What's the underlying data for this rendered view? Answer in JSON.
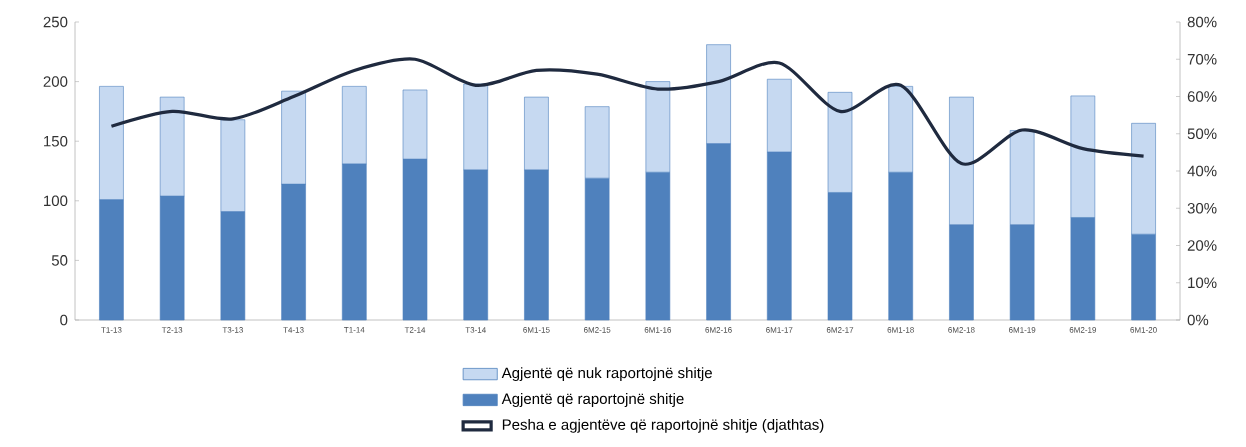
{
  "chart_data": {
    "type": "bar",
    "stacked": true,
    "categories": [
      "T1-13",
      "T2-13",
      "T3-13",
      "T4-13",
      "T1-14",
      "T2-14",
      "T3-14",
      "6M1-15",
      "6M2-15",
      "6M1-16",
      "6M2-16",
      "6M1-17",
      "6M2-17",
      "6M1-18",
      "6M2-18",
      "6M1-19",
      "6M2-19",
      "6M1-20"
    ],
    "series": [
      {
        "name": "Agjentë që raportojnë shitje",
        "color": "#4f81bd",
        "values": [
          101,
          104,
          91,
          114,
          131,
          135,
          126,
          126,
          119,
          124,
          148,
          141,
          107,
          124,
          80,
          80,
          86,
          72
        ]
      },
      {
        "name": "Agjentë që nuk raportojnë shitje",
        "color": "#c6d9f1",
        "values": [
          95,
          83,
          77,
          78,
          65,
          58,
          72,
          61,
          60,
          76,
          83,
          61,
          84,
          72,
          107,
          79,
          102,
          93
        ]
      },
      {
        "name": "Pesha e agjentëve që raportojnë shitje (djathtas)",
        "type": "line",
        "axis": "y2",
        "color": "#1f2a3f",
        "values": [
          52,
          56,
          54,
          60,
          67,
          70,
          63,
          67,
          66,
          62,
          64,
          69,
          56,
          63,
          42,
          51,
          46,
          44
        ]
      }
    ],
    "ylim": [
      0,
      250
    ],
    "yticks": [
      0,
      50,
      100,
      150,
      200,
      250
    ],
    "y2lim": [
      0,
      80
    ],
    "y2ticks": [
      {
        "value": 0,
        "label": "0%"
      },
      {
        "value": 10,
        "label": "10%"
      },
      {
        "value": 20,
        "label": "20%"
      },
      {
        "value": 30,
        "label": "30%"
      },
      {
        "value": 40,
        "label": "40%"
      },
      {
        "value": 50,
        "label": "50%"
      },
      {
        "value": 60,
        "label": "60%"
      },
      {
        "value": 70,
        "label": "70%"
      },
      {
        "value": 80,
        "label": "80%"
      }
    ],
    "legend": "bottom",
    "marker": "none"
  }
}
